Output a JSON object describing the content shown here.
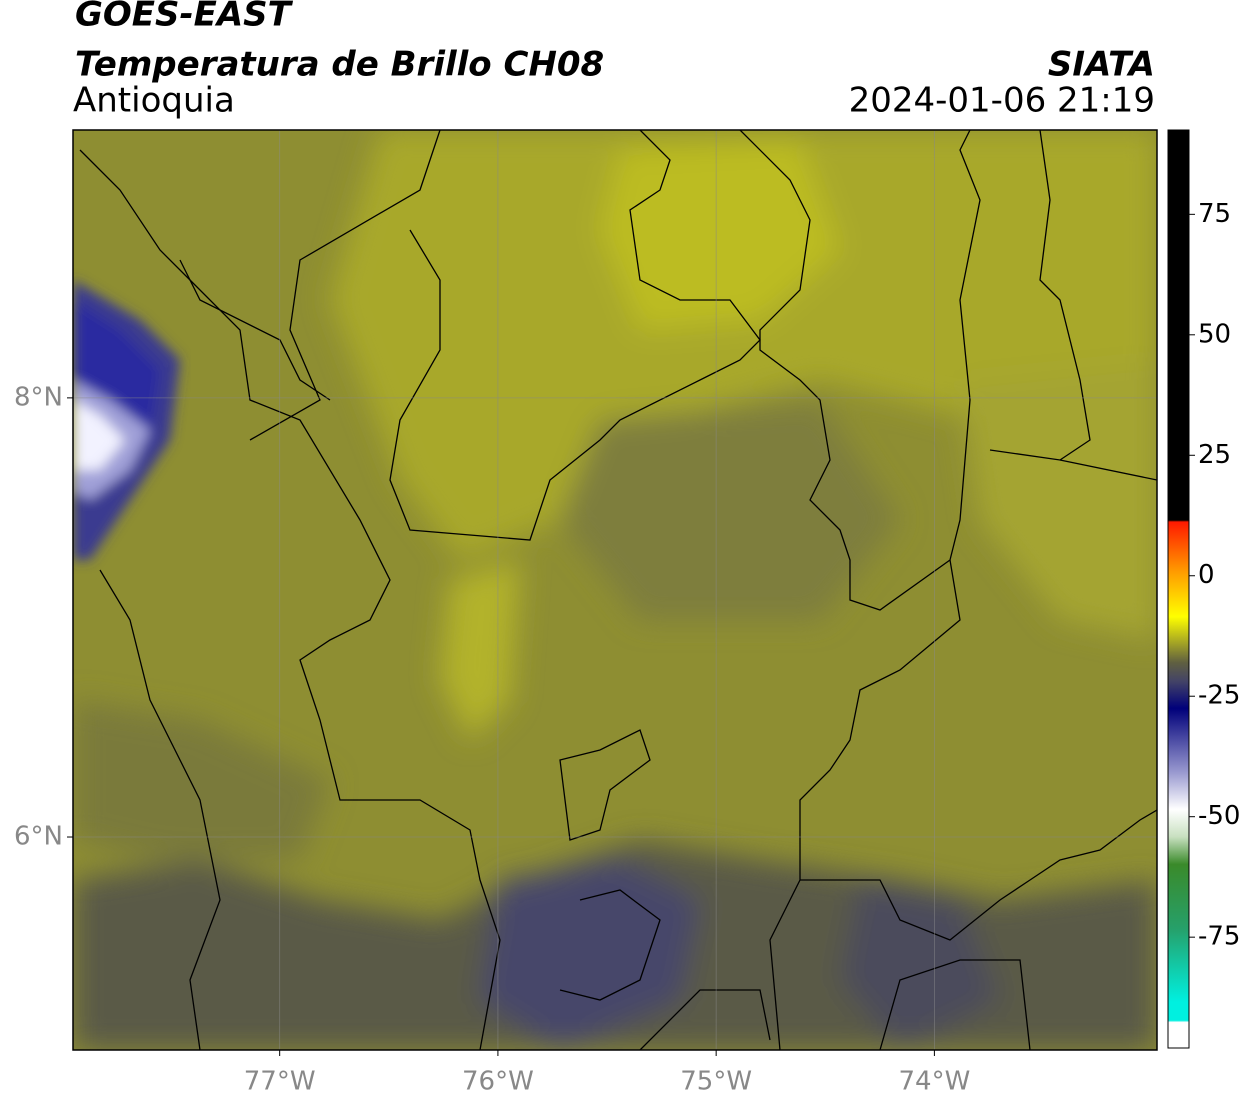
{
  "header": {
    "title": "GOES-EAST",
    "subtitle": "Temperatura de Brillo CH08",
    "region": "Antioquia",
    "source": "SIATA",
    "datetime": "2024-01-06 21:19"
  },
  "map": {
    "xlim": [
      -77.947,
      -72.98
    ],
    "ylim": [
      5.03,
      9.22
    ],
    "xticks": [
      {
        "value": -77,
        "label": "77°W"
      },
      {
        "value": -76,
        "label": "76°W"
      },
      {
        "value": -75,
        "label": "75°W"
      },
      {
        "value": -74,
        "label": "74°W"
      }
    ],
    "yticks": [
      {
        "value": 8,
        "label": "8°N"
      },
      {
        "value": 6,
        "label": "6°N"
      }
    ],
    "grid": true
  },
  "colorbar": {
    "lim": [
      -98,
      92.5
    ],
    "ticks": [
      75,
      50,
      25,
      0,
      -25,
      -50,
      -75
    ]
  }
}
